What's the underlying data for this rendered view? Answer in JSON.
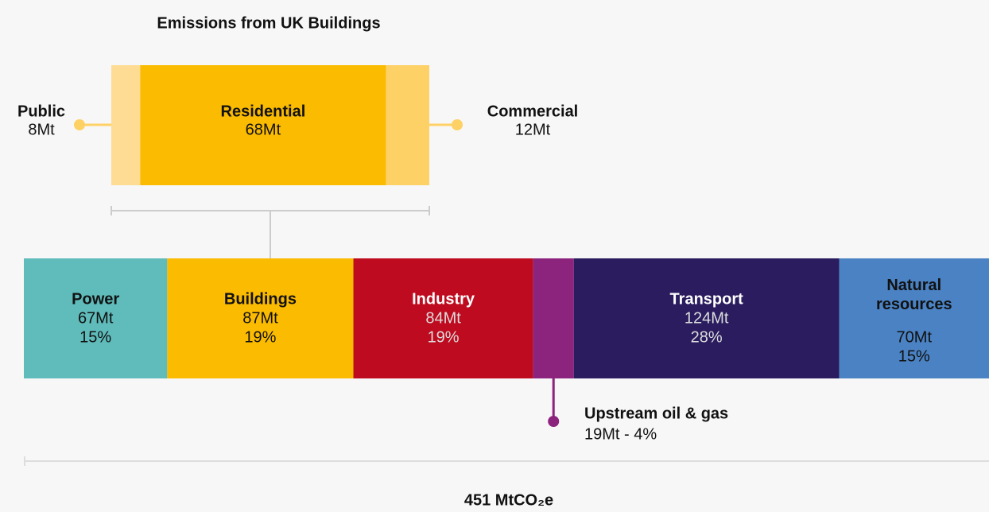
{
  "chart_data": [
    {
      "type": "stacked-bar",
      "title": "Emissions from UK Buildings",
      "categories": [
        "Public",
        "Residential",
        "Commercial"
      ],
      "values": [
        8,
        68,
        12
      ],
      "value_labels": [
        "8Mt",
        "68Mt",
        "12Mt"
      ],
      "colors": [
        "#fedc94",
        "#fbbb00",
        "#fed166"
      ]
    },
    {
      "type": "stacked-bar",
      "categories": [
        "Power",
        "Buildings",
        "Industry",
        "Upstream oil & gas",
        "Transport",
        "Natural resources"
      ],
      "values": [
        67,
        87,
        84,
        19,
        124,
        70
      ],
      "value_labels": [
        "67Mt",
        "87Mt",
        "84Mt",
        "19Mt - 4%",
        "124Mt",
        "70Mt"
      ],
      "percent_labels": [
        "15%",
        "19%",
        "19%",
        null,
        "28%",
        "15%"
      ],
      "colors": [
        "#5fbcbb",
        "#fbbb00",
        "#be0b1f",
        "#8c237d",
        "#2a1c5e",
        "#4a82c3"
      ],
      "total": 451,
      "total_label": "451 MtCO₂e"
    }
  ]
}
